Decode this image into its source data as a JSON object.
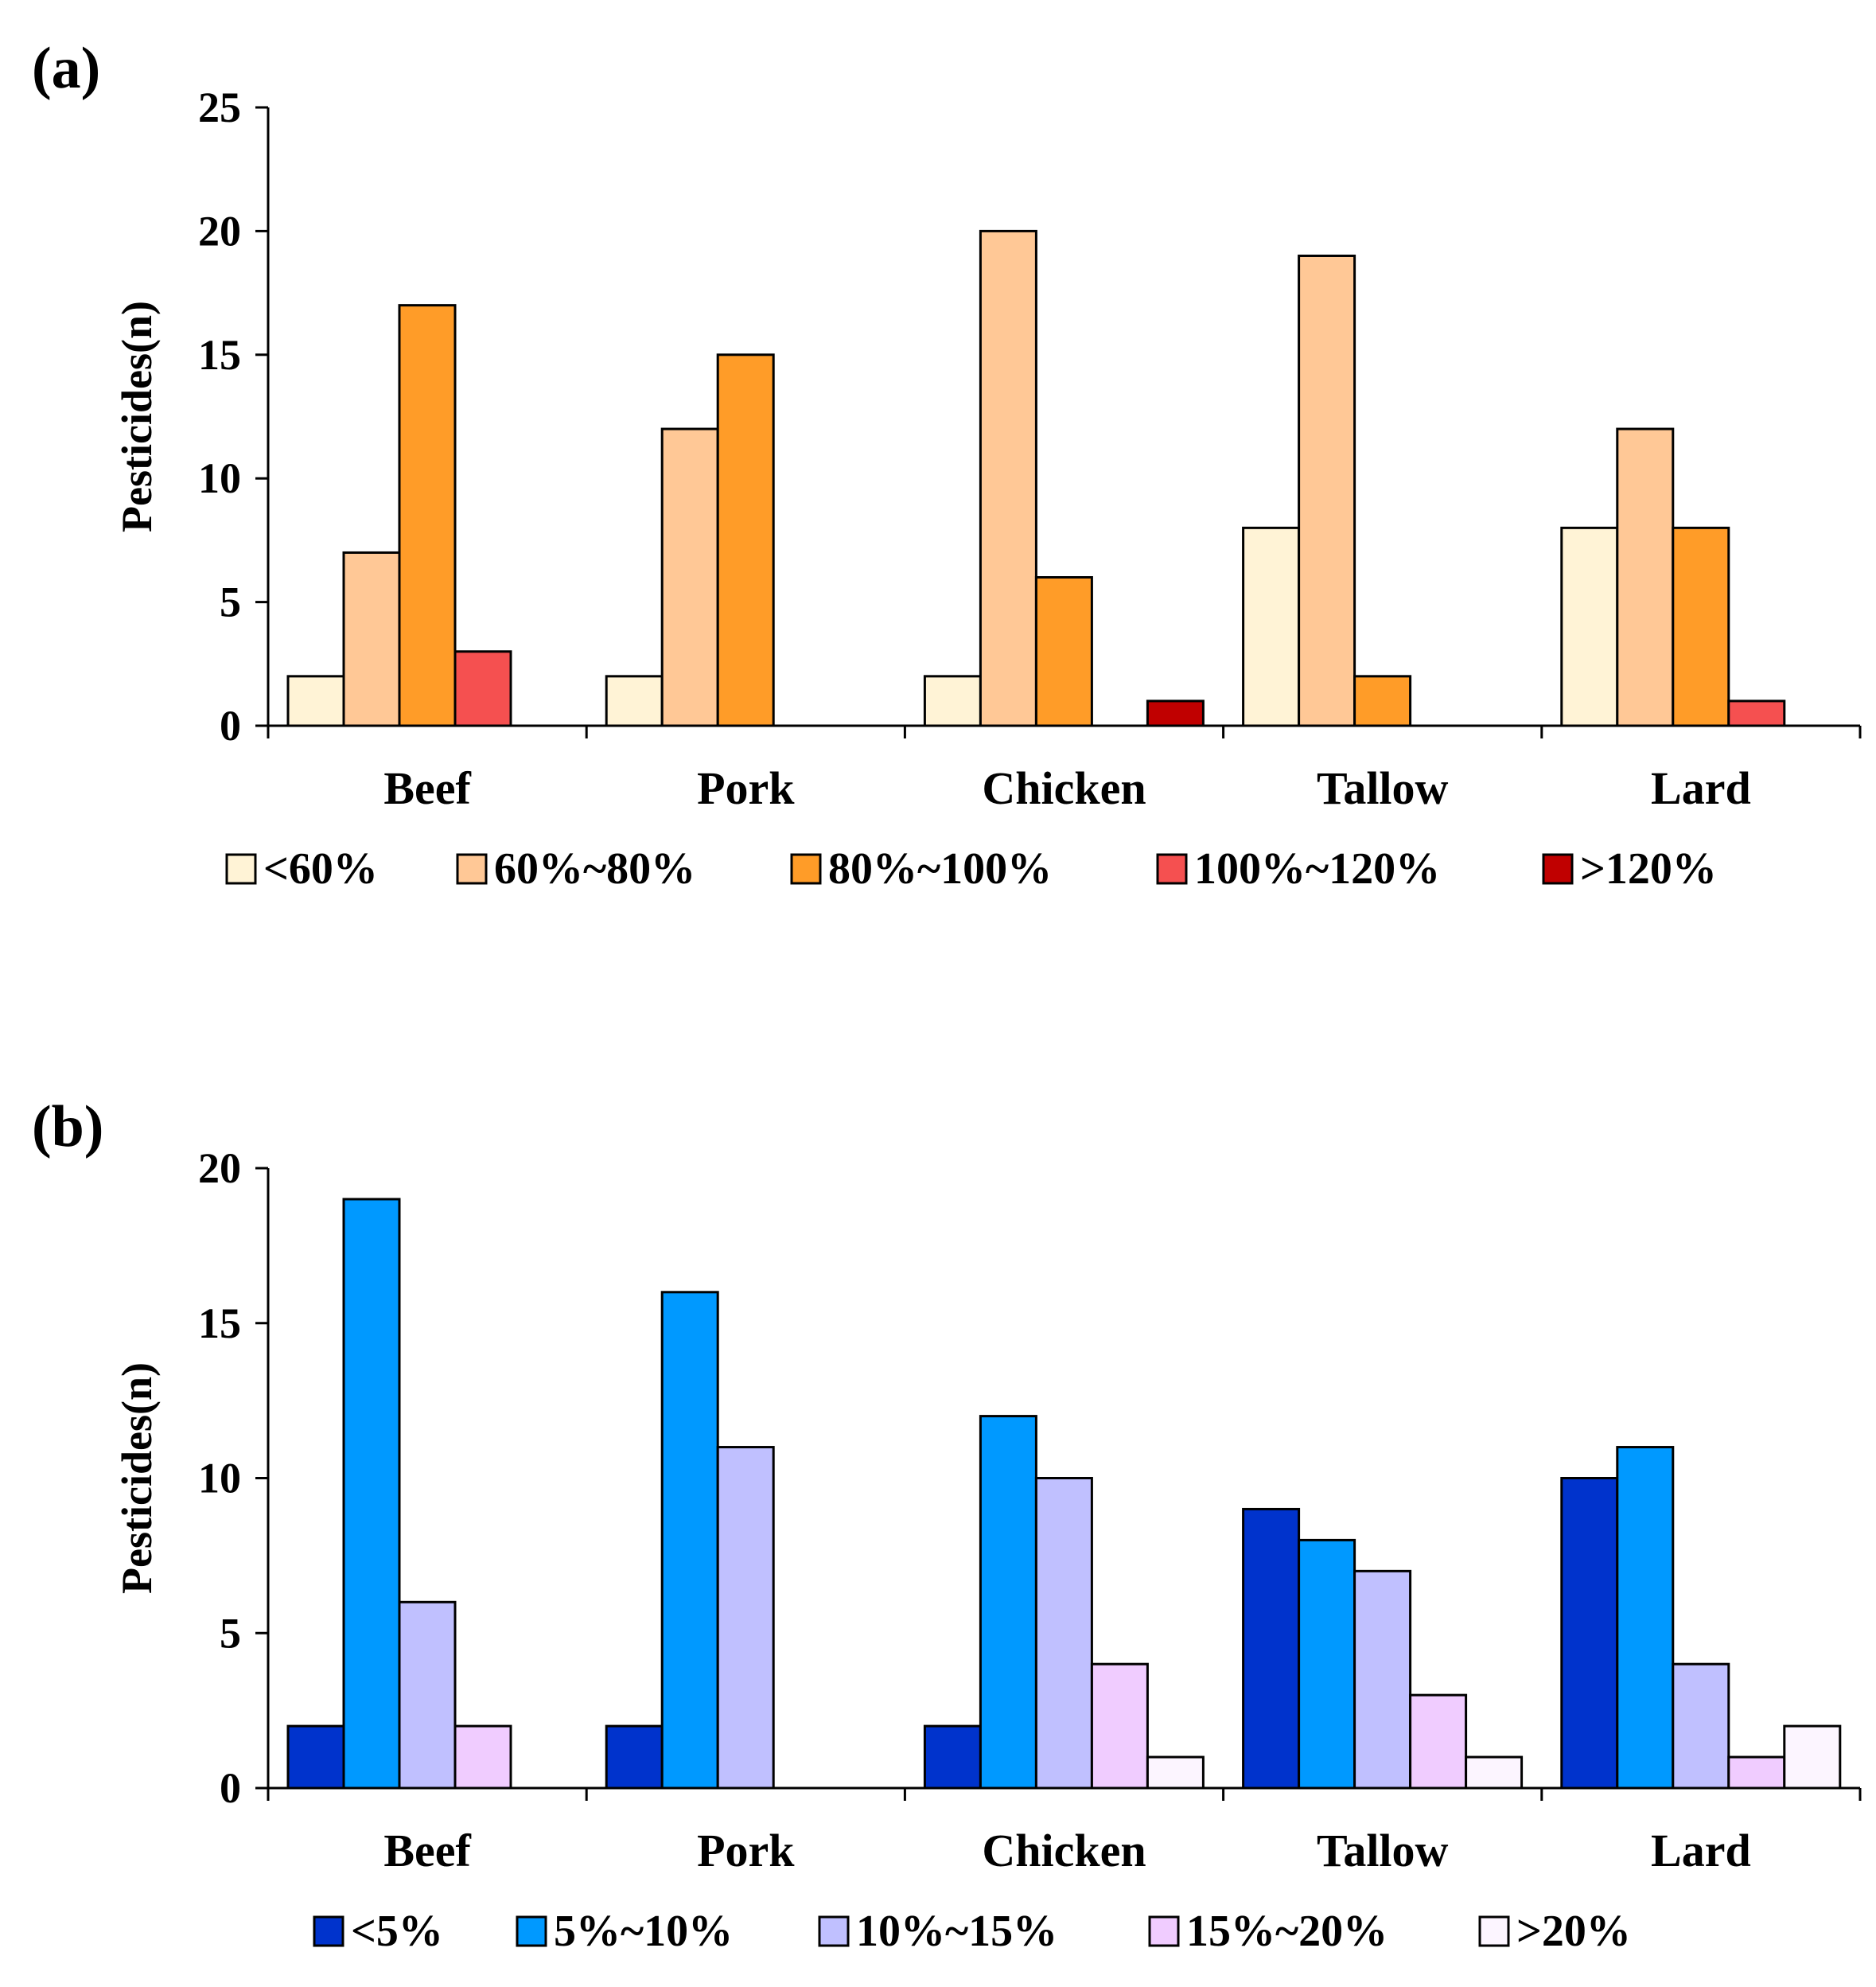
{
  "chart_data": [
    {
      "type": "bar",
      "panel_label": "(a)",
      "ylabel": "Pesticides(n)",
      "xlabel": "",
      "ylim": [
        0,
        25
      ],
      "yticks": [
        "0",
        "5",
        "10",
        "15",
        "20",
        "25"
      ],
      "ytick_values": [
        0,
        5,
        10,
        15,
        20,
        25
      ],
      "categories": [
        "Beef",
        "Pork",
        "Chicken",
        "Tallow",
        "Lard"
      ],
      "legend_position": "bottom",
      "series": [
        {
          "name": "<60%",
          "color": "#FFF3D6",
          "values": [
            2,
            2,
            2,
            8,
            8
          ]
        },
        {
          "name": "60%~80%",
          "color": "#FFC896",
          "values": [
            7,
            12,
            20,
            19,
            12
          ]
        },
        {
          "name": "80%~100%",
          "color": "#FF9C28",
          "values": [
            17,
            15,
            6,
            2,
            8
          ]
        },
        {
          "name": "100%~120%",
          "color": "#F55050",
          "values": [
            3,
            0,
            0,
            0,
            1
          ]
        },
        {
          "name": ">120%",
          "color": "#C00000",
          "values": [
            0,
            0,
            1,
            0,
            0
          ]
        }
      ]
    },
    {
      "type": "bar",
      "panel_label": "(b)",
      "ylabel": "Pesticides(n)",
      "xlabel": "",
      "ylim": [
        0,
        20
      ],
      "yticks": [
        "0",
        "5",
        "10",
        "15",
        "20"
      ],
      "ytick_values": [
        0,
        5,
        10,
        15,
        20
      ],
      "categories": [
        "Beef",
        "Pork",
        "Chicken",
        "Tallow",
        "Lard"
      ],
      "legend_position": "bottom",
      "series": [
        {
          "name": "<5%",
          "color": "#0033CC",
          "values": [
            2,
            2,
            2,
            9,
            10
          ]
        },
        {
          "name": "5%~10%",
          "color": "#0099FF",
          "values": [
            19,
            16,
            12,
            8,
            11
          ]
        },
        {
          "name": "10%~15%",
          "color": "#C0C0FF",
          "values": [
            6,
            11,
            10,
            7,
            4
          ]
        },
        {
          "name": "15%~20%",
          "color": "#F0CCFF",
          "values": [
            2,
            0,
            4,
            3,
            1
          ]
        },
        {
          "name": ">20%",
          "color": "#FCF5FF",
          "values": [
            0,
            0,
            1,
            1,
            2
          ]
        }
      ]
    }
  ]
}
